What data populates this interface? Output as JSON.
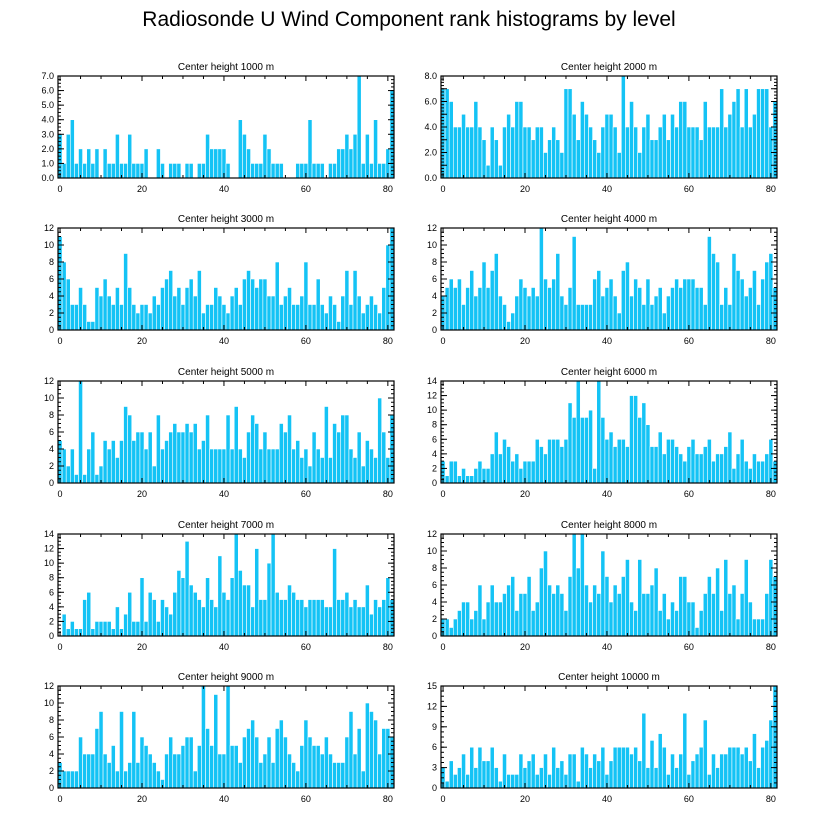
{
  "title": "Radiosonde U Wind Component rank histograms by level",
  "colors": {
    "bar": "#14c3f5",
    "bar_edge": "#ffffff",
    "frame": "#000000"
  },
  "chart_data": [
    {
      "type": "bar",
      "title": "Center height 1000 m",
      "xlim": [
        -0.5,
        81.5
      ],
      "ylim": [
        0,
        7
      ],
      "xticks": [
        0,
        20,
        40,
        60,
        80
      ],
      "yticks": [
        0,
        1,
        2,
        3,
        4,
        5,
        6,
        7
      ],
      "ytick_labels": [
        "0.0",
        "1.0",
        "2.0",
        "3.0",
        "4.0",
        "5.0",
        "6.0",
        "7.0"
      ],
      "values": [
        3,
        1,
        3,
        4,
        1,
        2,
        1,
        2,
        1,
        2,
        0,
        2,
        1,
        1,
        3,
        1,
        1,
        3,
        1,
        1,
        1,
        2,
        0,
        0,
        2,
        1,
        0,
        1,
        1,
        1,
        0,
        1,
        1,
        0,
        1,
        1,
        3,
        2,
        2,
        2,
        2,
        1,
        0,
        0,
        4,
        3,
        2,
        1,
        1,
        1,
        3,
        2,
        1,
        1,
        1,
        0,
        0,
        0,
        1,
        1,
        1,
        4,
        1,
        1,
        1,
        0,
        1,
        1,
        2,
        2,
        3,
        2,
        3,
        7,
        1,
        3,
        1,
        4,
        1,
        1,
        2,
        6
      ]
    },
    {
      "type": "bar",
      "title": "Center height 2000 m",
      "xlim": [
        -0.5,
        81.5
      ],
      "ylim": [
        0,
        8
      ],
      "xticks": [
        0,
        20,
        40,
        60,
        80
      ],
      "yticks": [
        0,
        1,
        2,
        3,
        4,
        5,
        6,
        7,
        8
      ],
      "ytick_labels": [
        "0.0",
        "",
        "2.0",
        "",
        "4.0",
        "",
        "6.0",
        "",
        "8.0"
      ],
      "values": [
        7,
        7,
        6,
        4,
        4,
        5,
        4,
        4,
        6,
        4,
        3,
        1,
        4,
        3,
        1,
        4,
        5,
        4,
        6,
        6,
        4,
        4,
        3,
        4,
        4,
        2,
        3,
        4,
        3,
        2,
        7,
        7,
        5,
        3,
        6,
        5,
        4,
        3,
        2,
        4,
        5,
        5,
        4,
        2,
        8,
        4,
        6,
        4,
        2,
        4,
        5,
        3,
        3,
        4,
        5,
        3,
        5,
        4,
        6,
        6,
        4,
        4,
        4,
        3,
        6,
        4,
        4,
        4,
        7,
        4,
        5,
        6,
        7,
        4,
        7,
        4,
        5,
        7,
        7,
        7,
        4,
        6
      ]
    },
    {
      "type": "bar",
      "title": "Center height 3000 m",
      "xlim": [
        -0.5,
        81.5
      ],
      "ylim": [
        0,
        12
      ],
      "xticks": [
        0,
        20,
        40,
        60,
        80
      ],
      "yticks": [
        0,
        2,
        4,
        6,
        8,
        10,
        12
      ],
      "values": [
        11,
        8,
        6,
        3,
        3,
        5,
        3,
        1,
        1,
        5,
        4,
        6,
        4,
        3,
        5,
        3,
        9,
        5,
        3,
        2,
        3,
        3,
        2,
        4,
        3,
        5,
        6,
        7,
        4,
        5,
        3,
        5,
        6,
        4,
        7,
        2,
        3,
        3,
        5,
        4,
        3,
        2,
        4,
        5,
        3,
        6,
        7,
        6,
        5,
        6,
        6,
        4,
        4,
        8,
        3,
        4,
        5,
        3,
        3,
        4,
        8,
        3,
        3,
        6,
        3,
        2,
        4,
        3,
        1,
        4,
        7,
        3,
        7,
        4,
        2,
        3,
        4,
        3,
        2,
        5,
        10,
        12
      ]
    },
    {
      "type": "bar",
      "title": "Center height 4000 m",
      "xlim": [
        -0.5,
        81.5
      ],
      "ylim": [
        0,
        12
      ],
      "xticks": [
        0,
        20,
        40,
        60,
        80
      ],
      "yticks": [
        0,
        2,
        4,
        6,
        8,
        10,
        12
      ],
      "values": [
        4,
        5,
        6,
        5,
        6,
        3,
        5,
        7,
        4,
        5,
        8,
        5,
        7,
        9,
        4,
        3,
        1,
        2,
        4,
        6,
        5,
        4,
        5,
        4,
        12,
        6,
        5,
        6,
        9,
        4,
        3,
        5,
        11,
        3,
        3,
        3,
        3,
        6,
        7,
        4,
        5,
        6,
        4,
        2,
        7,
        8,
        4,
        6,
        5,
        3,
        6,
        3,
        4,
        5,
        2,
        4,
        5,
        6,
        5,
        6,
        6,
        6,
        5,
        5,
        3,
        11,
        9,
        8,
        3,
        5,
        3,
        9,
        7,
        6,
        4,
        5,
        7,
        3,
        6,
        8,
        9,
        5
      ]
    },
    {
      "type": "bar",
      "title": "Center height 5000 m",
      "xlim": [
        -0.5,
        81.5
      ],
      "ylim": [
        0,
        12
      ],
      "xticks": [
        0,
        20,
        40,
        60,
        80
      ],
      "yticks": [
        0,
        2,
        4,
        6,
        8,
        10,
        12
      ],
      "values": [
        5,
        4,
        2,
        4,
        1,
        12,
        1,
        4,
        6,
        1,
        2,
        5,
        4,
        5,
        3,
        5,
        9,
        8,
        5,
        6,
        6,
        4,
        6,
        2,
        8,
        4,
        5,
        6,
        7,
        6,
        6,
        7,
        6,
        7,
        4,
        5,
        8,
        4,
        4,
        4,
        4,
        8,
        4,
        9,
        4,
        3,
        6,
        8,
        7,
        4,
        6,
        4,
        4,
        4,
        7,
        6,
        8,
        4,
        5,
        3,
        4,
        2,
        6,
        4,
        3,
        9,
        3,
        7,
        6,
        8,
        8,
        4,
        3,
        6,
        2,
        5,
        4,
        3,
        10,
        6,
        3,
        8
      ]
    },
    {
      "type": "bar",
      "title": "Center height 6000 m",
      "xlim": [
        -0.5,
        81.5
      ],
      "ylim": [
        0,
        14
      ],
      "xticks": [
        0,
        20,
        40,
        60,
        80
      ],
      "yticks": [
        0,
        2,
        4,
        6,
        8,
        10,
        12,
        14
      ],
      "values": [
        3,
        1,
        3,
        3,
        1,
        2,
        1,
        1,
        2,
        3,
        2,
        2,
        4,
        7,
        4,
        6,
        5,
        3,
        4,
        2,
        3,
        3,
        3,
        6,
        5,
        4,
        6,
        6,
        6,
        5,
        6,
        11,
        9,
        14,
        9,
        9,
        10,
        2,
        14,
        9,
        6,
        7,
        5,
        6,
        6,
        5,
        12,
        12,
        9,
        11,
        8,
        5,
        5,
        7,
        4,
        6,
        6,
        5,
        4,
        3,
        5,
        6,
        4,
        4,
        5,
        6,
        3,
        4,
        4,
        5,
        7,
        2,
        4,
        6,
        3,
        2,
        4,
        3,
        3,
        4,
        6,
        3
      ]
    },
    {
      "type": "bar",
      "title": "Center height 7000 m",
      "xlim": [
        -0.5,
        81.5
      ],
      "ylim": [
        0,
        14
      ],
      "xticks": [
        0,
        20,
        40,
        60,
        80
      ],
      "yticks": [
        0,
        2,
        4,
        6,
        8,
        10,
        12,
        14
      ],
      "values": [
        0,
        3,
        1,
        2,
        1,
        1,
        5,
        6,
        1,
        2,
        2,
        2,
        2,
        1,
        4,
        1,
        3,
        6,
        2,
        2,
        8,
        2,
        6,
        5,
        2,
        5,
        4,
        3,
        6,
        9,
        8,
        13,
        7,
        6,
        5,
        4,
        8,
        5,
        4,
        11,
        6,
        5,
        8,
        14,
        9,
        7,
        7,
        4,
        12,
        5,
        5,
        10,
        14,
        6,
        5,
        5,
        7,
        6,
        5,
        5,
        4,
        5,
        5,
        5,
        5,
        4,
        4,
        12,
        5,
        5,
        6,
        4,
        5,
        4,
        4,
        7,
        3,
        5,
        4,
        5,
        8,
        5
      ]
    },
    {
      "type": "bar",
      "title": "Center height 8000 m",
      "xlim": [
        -0.5,
        81.5
      ],
      "ylim": [
        0,
        12
      ],
      "xticks": [
        0,
        20,
        40,
        60,
        80
      ],
      "yticks": [
        0,
        2,
        4,
        6,
        8,
        10,
        12
      ],
      "values": [
        2,
        2,
        1,
        2,
        3,
        4,
        4,
        2,
        3,
        6,
        2,
        4,
        6,
        4,
        4,
        5,
        6,
        7,
        3,
        5,
        5,
        7,
        3,
        4,
        8,
        10,
        6,
        5,
        6,
        5,
        3,
        7,
        12,
        8,
        12,
        6,
        4,
        6,
        5,
        10,
        7,
        4,
        6,
        5,
        7,
        9,
        4,
        3,
        9,
        5,
        5,
        6,
        8,
        3,
        5,
        2,
        4,
        3,
        7,
        7,
        4,
        4,
        1,
        3,
        5,
        7,
        5,
        8,
        3,
        9,
        5,
        6,
        2,
        5,
        9,
        4,
        2,
        2,
        2,
        5,
        9,
        7
      ]
    },
    {
      "type": "bar",
      "title": "Center height 9000 m",
      "xlim": [
        -0.5,
        81.5
      ],
      "ylim": [
        0,
        12
      ],
      "xticks": [
        0,
        20,
        40,
        60,
        80
      ],
      "yticks": [
        0,
        2,
        4,
        6,
        8,
        10,
        12
      ],
      "values": [
        3,
        2,
        2,
        2,
        2,
        6,
        4,
        4,
        4,
        7,
        9,
        4,
        3,
        5,
        2,
        9,
        2,
        3,
        9,
        3,
        6,
        5,
        4,
        3,
        2,
        1,
        4,
        6,
        4,
        4,
        5,
        6,
        6,
        2,
        5,
        12,
        7,
        5,
        11,
        4,
        4,
        12,
        5,
        5,
        3,
        6,
        7,
        8,
        6,
        3,
        4,
        6,
        3,
        7,
        8,
        6,
        4,
        3,
        2,
        5,
        8,
        6,
        5,
        5,
        4,
        6,
        4,
        3,
        3,
        3,
        6,
        9,
        4,
        7,
        2,
        10,
        9,
        8,
        4,
        7,
        7,
        6
      ]
    },
    {
      "type": "bar",
      "title": "Center height 10000 m",
      "xlim": [
        -0.5,
        81.5
      ],
      "ylim": [
        0,
        15
      ],
      "xticks": [
        0,
        20,
        40,
        60,
        80
      ],
      "yticks": [
        0,
        3,
        6,
        9,
        12,
        15
      ],
      "values": [
        3,
        1,
        4,
        2,
        3,
        5,
        2,
        6,
        3,
        6,
        4,
        4,
        6,
        3,
        1,
        5,
        2,
        2,
        2,
        5,
        3,
        4,
        5,
        2,
        3,
        5,
        2,
        6,
        3,
        4,
        2,
        5,
        5,
        1,
        6,
        5,
        3,
        5,
        4,
        6,
        2,
        4,
        6,
        6,
        6,
        6,
        5,
        6,
        4,
        11,
        3,
        7,
        3,
        8,
        6,
        2,
        5,
        3,
        5,
        11,
        2,
        4,
        5,
        6,
        10,
        2,
        5,
        3,
        5,
        5,
        6,
        6,
        6,
        5,
        6,
        4,
        8,
        3,
        6,
        7,
        10,
        15
      ]
    }
  ]
}
